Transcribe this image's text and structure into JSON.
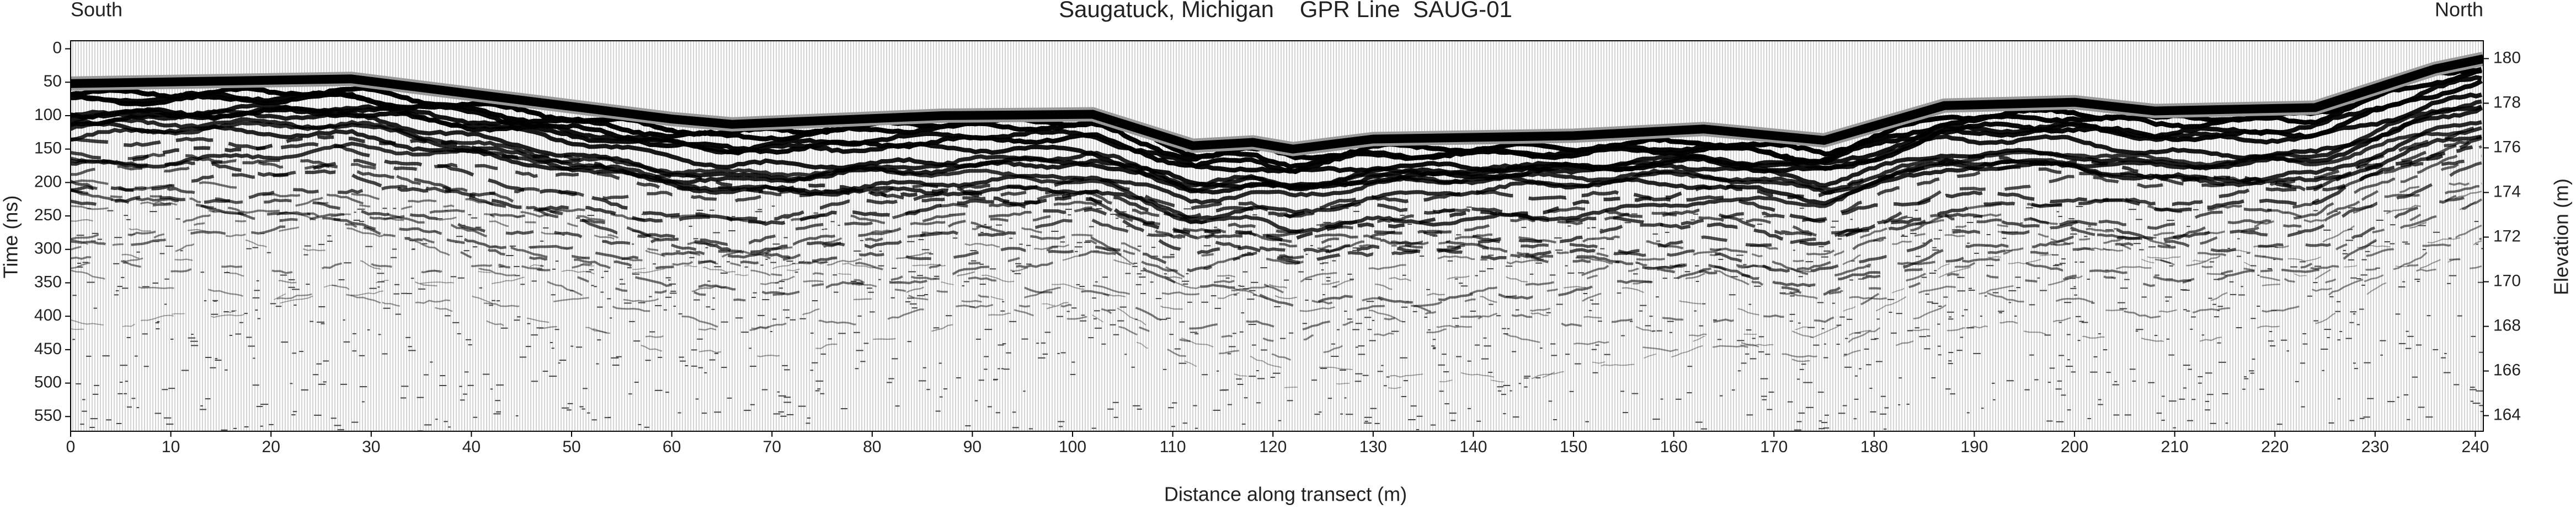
{
  "chart_data": {
    "type": "radargram",
    "title": "Saugatuck, Michigan    GPR Line  SAUG-01",
    "left_annotation": "South",
    "right_annotation": "North",
    "x_label": "Distance along transect (m)",
    "y_label": "Time (ns)",
    "y2_label": "Elevation (m)",
    "x": [
      0,
      28,
      60,
      66,
      87,
      102,
      112,
      118,
      122,
      130,
      150,
      163,
      175,
      187,
      200,
      208,
      224,
      236,
      240.8
    ],
    "values": [
      52,
      45,
      105,
      113,
      100,
      98,
      145,
      140,
      150,
      135,
      130,
      120,
      137,
      85,
      80,
      93,
      88,
      30,
      15
    ],
    "color": "#000000",
    "xlim": [
      0,
      240.8
    ],
    "xticks": [
      0,
      10,
      20,
      30,
      40,
      50,
      60,
      70,
      80,
      90,
      100,
      110,
      120,
      130,
      140,
      150,
      160,
      170,
      180,
      190,
      200,
      210,
      220,
      230,
      240
    ],
    "ylim": [
      572,
      -12
    ],
    "yticks": [
      0,
      50,
      100,
      150,
      200,
      250,
      300,
      350,
      400,
      450,
      500,
      550
    ],
    "y2lim": [
      163.3,
      180.8
    ],
    "y2ticks": [
      164,
      166,
      168,
      170,
      172,
      174,
      176,
      178,
      180
    ]
  }
}
